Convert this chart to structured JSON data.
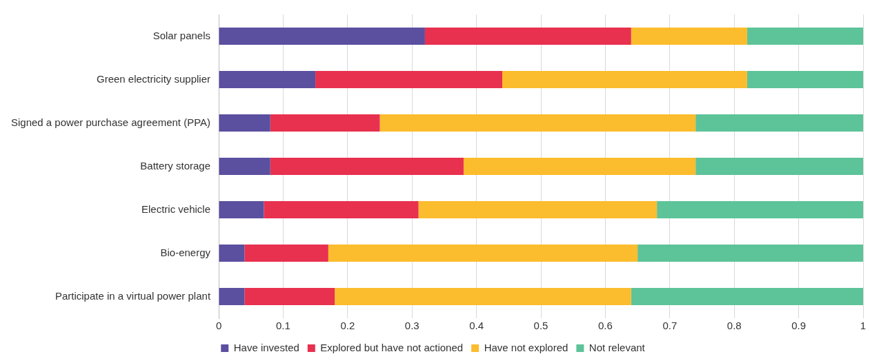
{
  "chart_data": {
    "type": "bar",
    "orientation": "horizontal",
    "stacked": true,
    "categories": [
      "Solar panels",
      "Green electricity supplier",
      "Signed a power purchase agreement (PPA)",
      "Battery storage",
      "Electric vehicle",
      "Bio-energy",
      "Participate in a virtual power plant"
    ],
    "series": [
      {
        "name": "Have invested",
        "color": "#5b4fa0",
        "values": [
          0.32,
          0.15,
          0.08,
          0.08,
          0.07,
          0.04,
          0.04
        ]
      },
      {
        "name": "Explored but have not actioned",
        "color": "#e8304f",
        "values": [
          0.32,
          0.29,
          0.17,
          0.3,
          0.24,
          0.13,
          0.14
        ]
      },
      {
        "name": "Have not explored",
        "color": "#fbbc2d",
        "values": [
          0.18,
          0.38,
          0.49,
          0.36,
          0.37,
          0.48,
          0.46
        ]
      },
      {
        "name": "Not relevant",
        "color": "#5dc399",
        "values": [
          0.18,
          0.18,
          0.26,
          0.26,
          0.32,
          0.35,
          0.36
        ]
      }
    ],
    "xlim": [
      0,
      1
    ],
    "xticks": [
      0,
      0.1,
      0.2,
      0.3,
      0.4,
      0.5,
      0.6,
      0.7,
      0.8,
      0.9,
      1
    ],
    "grid": "x",
    "legend": "bottom"
  }
}
